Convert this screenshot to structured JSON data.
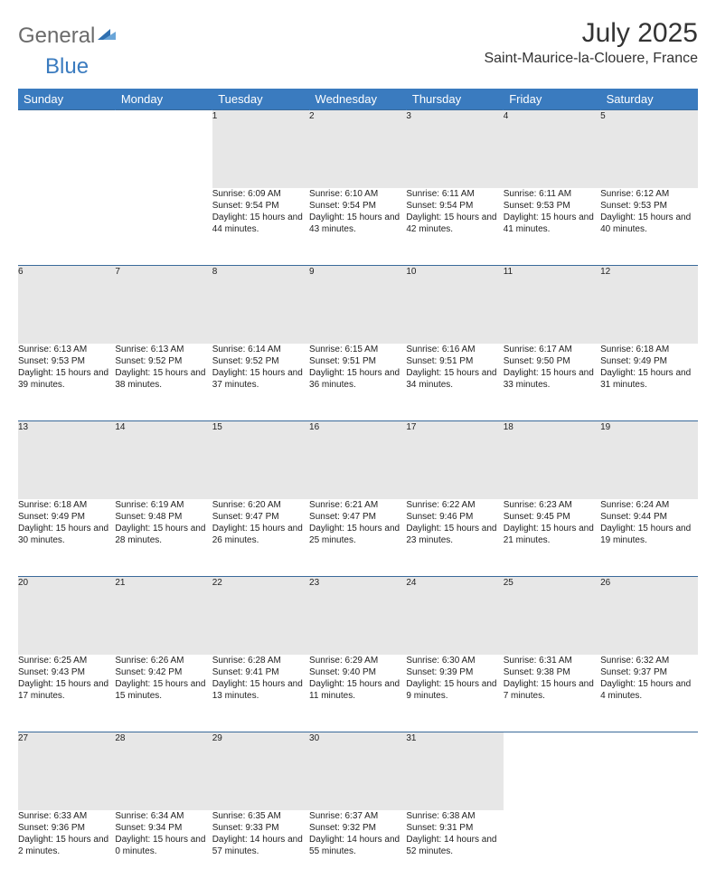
{
  "brand": {
    "part1": "General",
    "part2": "Blue"
  },
  "title": "July 2025",
  "location": "Saint-Maurice-la-Clouere, France",
  "colors": {
    "header_bg": "#3a7bbf",
    "header_text": "#ffffff",
    "daynum_bg": "#e7e7e7",
    "border": "#3a6a9a",
    "text": "#222222",
    "logo_gray": "#6b6b6b",
    "logo_blue": "#3a7bbf"
  },
  "weekdays": [
    "Sunday",
    "Monday",
    "Tuesday",
    "Wednesday",
    "Thursday",
    "Friday",
    "Saturday"
  ],
  "weeks": [
    [
      {
        "day": "",
        "text": ""
      },
      {
        "day": "",
        "text": ""
      },
      {
        "day": "1",
        "text": "Sunrise: 6:09 AM\nSunset: 9:54 PM\nDaylight: 15 hours and 44 minutes."
      },
      {
        "day": "2",
        "text": "Sunrise: 6:10 AM\nSunset: 9:54 PM\nDaylight: 15 hours and 43 minutes."
      },
      {
        "day": "3",
        "text": "Sunrise: 6:11 AM\nSunset: 9:54 PM\nDaylight: 15 hours and 42 minutes."
      },
      {
        "day": "4",
        "text": "Sunrise: 6:11 AM\nSunset: 9:53 PM\nDaylight: 15 hours and 41 minutes."
      },
      {
        "day": "5",
        "text": "Sunrise: 6:12 AM\nSunset: 9:53 PM\nDaylight: 15 hours and 40 minutes."
      }
    ],
    [
      {
        "day": "6",
        "text": "Sunrise: 6:13 AM\nSunset: 9:53 PM\nDaylight: 15 hours and 39 minutes."
      },
      {
        "day": "7",
        "text": "Sunrise: 6:13 AM\nSunset: 9:52 PM\nDaylight: 15 hours and 38 minutes."
      },
      {
        "day": "8",
        "text": "Sunrise: 6:14 AM\nSunset: 9:52 PM\nDaylight: 15 hours and 37 minutes."
      },
      {
        "day": "9",
        "text": "Sunrise: 6:15 AM\nSunset: 9:51 PM\nDaylight: 15 hours and 36 minutes."
      },
      {
        "day": "10",
        "text": "Sunrise: 6:16 AM\nSunset: 9:51 PM\nDaylight: 15 hours and 34 minutes."
      },
      {
        "day": "11",
        "text": "Sunrise: 6:17 AM\nSunset: 9:50 PM\nDaylight: 15 hours and 33 minutes."
      },
      {
        "day": "12",
        "text": "Sunrise: 6:18 AM\nSunset: 9:49 PM\nDaylight: 15 hours and 31 minutes."
      }
    ],
    [
      {
        "day": "13",
        "text": "Sunrise: 6:18 AM\nSunset: 9:49 PM\nDaylight: 15 hours and 30 minutes."
      },
      {
        "day": "14",
        "text": "Sunrise: 6:19 AM\nSunset: 9:48 PM\nDaylight: 15 hours and 28 minutes."
      },
      {
        "day": "15",
        "text": "Sunrise: 6:20 AM\nSunset: 9:47 PM\nDaylight: 15 hours and 26 minutes."
      },
      {
        "day": "16",
        "text": "Sunrise: 6:21 AM\nSunset: 9:47 PM\nDaylight: 15 hours and 25 minutes."
      },
      {
        "day": "17",
        "text": "Sunrise: 6:22 AM\nSunset: 9:46 PM\nDaylight: 15 hours and 23 minutes."
      },
      {
        "day": "18",
        "text": "Sunrise: 6:23 AM\nSunset: 9:45 PM\nDaylight: 15 hours and 21 minutes."
      },
      {
        "day": "19",
        "text": "Sunrise: 6:24 AM\nSunset: 9:44 PM\nDaylight: 15 hours and 19 minutes."
      }
    ],
    [
      {
        "day": "20",
        "text": "Sunrise: 6:25 AM\nSunset: 9:43 PM\nDaylight: 15 hours and 17 minutes."
      },
      {
        "day": "21",
        "text": "Sunrise: 6:26 AM\nSunset: 9:42 PM\nDaylight: 15 hours and 15 minutes."
      },
      {
        "day": "22",
        "text": "Sunrise: 6:28 AM\nSunset: 9:41 PM\nDaylight: 15 hours and 13 minutes."
      },
      {
        "day": "23",
        "text": "Sunrise: 6:29 AM\nSunset: 9:40 PM\nDaylight: 15 hours and 11 minutes."
      },
      {
        "day": "24",
        "text": "Sunrise: 6:30 AM\nSunset: 9:39 PM\nDaylight: 15 hours and 9 minutes."
      },
      {
        "day": "25",
        "text": "Sunrise: 6:31 AM\nSunset: 9:38 PM\nDaylight: 15 hours and 7 minutes."
      },
      {
        "day": "26",
        "text": "Sunrise: 6:32 AM\nSunset: 9:37 PM\nDaylight: 15 hours and 4 minutes."
      }
    ],
    [
      {
        "day": "27",
        "text": "Sunrise: 6:33 AM\nSunset: 9:36 PM\nDaylight: 15 hours and 2 minutes."
      },
      {
        "day": "28",
        "text": "Sunrise: 6:34 AM\nSunset: 9:34 PM\nDaylight: 15 hours and 0 minutes."
      },
      {
        "day": "29",
        "text": "Sunrise: 6:35 AM\nSunset: 9:33 PM\nDaylight: 14 hours and 57 minutes."
      },
      {
        "day": "30",
        "text": "Sunrise: 6:37 AM\nSunset: 9:32 PM\nDaylight: 14 hours and 55 minutes."
      },
      {
        "day": "31",
        "text": "Sunrise: 6:38 AM\nSunset: 9:31 PM\nDaylight: 14 hours and 52 minutes."
      },
      {
        "day": "",
        "text": ""
      },
      {
        "day": "",
        "text": ""
      }
    ]
  ]
}
